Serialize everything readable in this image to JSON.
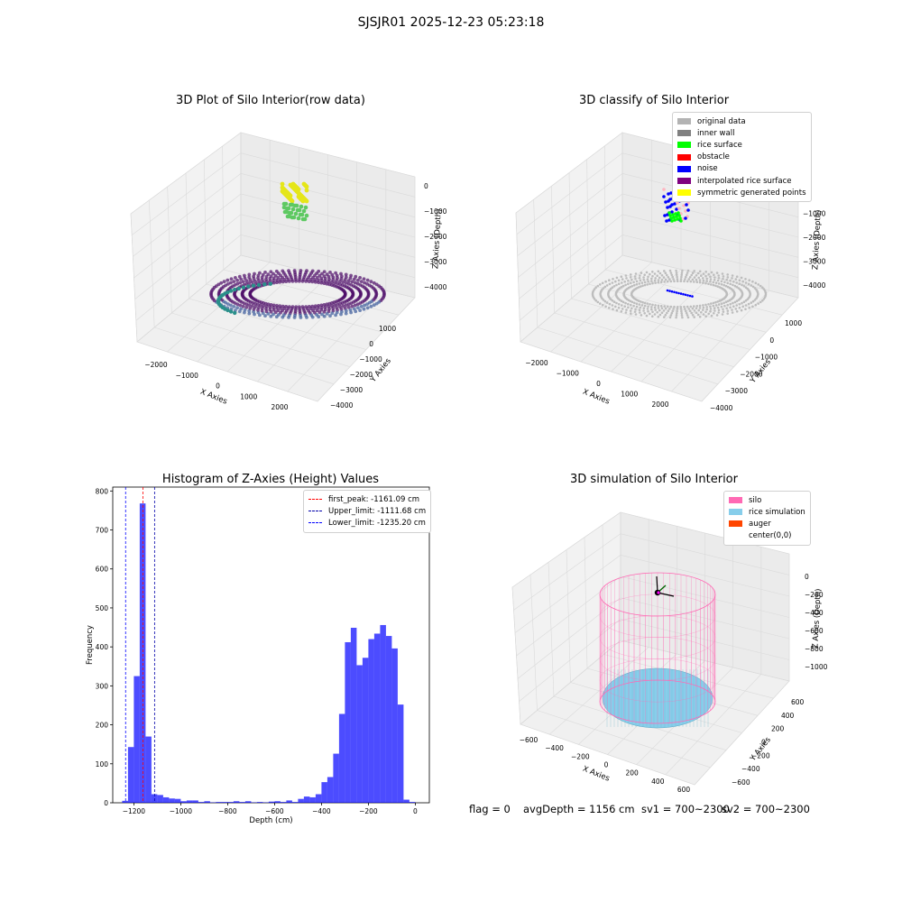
{
  "figure": {
    "suptitle": "SJSJR01 2025-12-23 05:23:18",
    "footer": {
      "flag": "flag = 0",
      "avg": "avgDepth = 1156 cm",
      "sv1": "sv1 = 700~2300",
      "sv2": "sv2 = 700~2300"
    }
  },
  "panels": {
    "raw": {
      "title": "3D Plot of Silo Interior(row data)",
      "xlabel": "X Axies",
      "ylabel": "Y Axies",
      "zlabel": "Z Axies (Depth)",
      "xticks": [
        "−2000",
        "−1000",
        "0",
        "1000",
        "2000"
      ],
      "yticks": [
        "1000",
        "0",
        "−1000",
        "−2000",
        "−3000",
        "−4000"
      ],
      "zticks": [
        "0",
        "−1000",
        "−2000",
        "−3000",
        "−4000"
      ]
    },
    "classify": {
      "title": "3D classify of Silo Interior",
      "xlabel": "X Axies",
      "ylabel": "Y Axies",
      "zlabel": "Z Axies (Depth)",
      "xticks": [
        "−2000",
        "−1000",
        "0",
        "1000",
        "2000"
      ],
      "yticks": [
        "1000",
        "0",
        "−1000",
        "−2000",
        "−3000",
        "−4000"
      ],
      "zticks": [
        "0",
        "−1000",
        "−2000",
        "−3000",
        "−4000"
      ],
      "legend": [
        {
          "label": "original data",
          "color": "#b3b3b3"
        },
        {
          "label": "inner wall",
          "color": "#808080"
        },
        {
          "label": "rice surface",
          "color": "#00ff00"
        },
        {
          "label": "obstacle",
          "color": "#ff0000"
        },
        {
          "label": "noise",
          "color": "#0000ff"
        },
        {
          "label": "interpolated rice surface",
          "color": "#800080"
        },
        {
          "label": "symmetric generated points",
          "color": "#ffff00"
        }
      ]
    },
    "simulation": {
      "title": "3D simulation of Silo Interior",
      "xlabel": "X Axies",
      "ylabel": "Y Axies",
      "zlabel": "Z Axies (Depth)",
      "xticks": [
        "−600",
        "−400",
        "−200",
        "0",
        "200",
        "400",
        "600"
      ],
      "yticks": [
        "600",
        "400",
        "200",
        "0",
        "−200",
        "−400",
        "−600"
      ],
      "zticks": [
        "0",
        "−200",
        "−400",
        "−600",
        "−800",
        "−1000"
      ],
      "legend": [
        {
          "label": "silo",
          "color": "#ff69b4"
        },
        {
          "label": "rice simulation",
          "color": "#87ceeb"
        },
        {
          "label": "auger",
          "color": "#ff4500"
        },
        {
          "label": "center(0,0)",
          "color": ""
        }
      ]
    }
  },
  "chart_data": {
    "type": "bar",
    "title": "Histogram of Z-Axies (Height) Values",
    "xlabel": "Depth (cm)",
    "ylabel": "Frequency",
    "xlim": [
      -1290,
      60
    ],
    "ylim": [
      0,
      810
    ],
    "xticks": [
      -1200,
      -1000,
      -800,
      -600,
      -400,
      -200,
      0
    ],
    "yticks": [
      0,
      100,
      200,
      300,
      400,
      500,
      600,
      700,
      800
    ],
    "bar_color": "#0000ff",
    "bin_width": 25,
    "bins": [
      {
        "x": -1250,
        "y": 5
      },
      {
        "x": -1225,
        "y": 143
      },
      {
        "x": -1200,
        "y": 325
      },
      {
        "x": -1175,
        "y": 768
      },
      {
        "x": -1150,
        "y": 170
      },
      {
        "x": -1125,
        "y": 22
      },
      {
        "x": -1100,
        "y": 20
      },
      {
        "x": -1075,
        "y": 14
      },
      {
        "x": -1050,
        "y": 11
      },
      {
        "x": -1025,
        "y": 10
      },
      {
        "x": -1000,
        "y": 4
      },
      {
        "x": -975,
        "y": 6
      },
      {
        "x": -950,
        "y": 6
      },
      {
        "x": -925,
        "y": 2
      },
      {
        "x": -900,
        "y": 4
      },
      {
        "x": -875,
        "y": 1
      },
      {
        "x": -850,
        "y": 2
      },
      {
        "x": -825,
        "y": 2
      },
      {
        "x": -800,
        "y": 2
      },
      {
        "x": -775,
        "y": 4
      },
      {
        "x": -750,
        "y": 2
      },
      {
        "x": -725,
        "y": 4
      },
      {
        "x": -700,
        "y": 1
      },
      {
        "x": -675,
        "y": 2
      },
      {
        "x": -650,
        "y": 1
      },
      {
        "x": -625,
        "y": 3
      },
      {
        "x": -600,
        "y": 4
      },
      {
        "x": -575,
        "y": 2
      },
      {
        "x": -550,
        "y": 6
      },
      {
        "x": -525,
        "y": 2
      },
      {
        "x": -500,
        "y": 10
      },
      {
        "x": -475,
        "y": 16
      },
      {
        "x": -450,
        "y": 14
      },
      {
        "x": -425,
        "y": 22
      },
      {
        "x": -400,
        "y": 53
      },
      {
        "x": -375,
        "y": 66
      },
      {
        "x": -350,
        "y": 126
      },
      {
        "x": -325,
        "y": 228
      },
      {
        "x": -300,
        "y": 412
      },
      {
        "x": -275,
        "y": 449
      },
      {
        "x": -250,
        "y": 353
      },
      {
        "x": -225,
        "y": 372
      },
      {
        "x": -200,
        "y": 420
      },
      {
        "x": -175,
        "y": 434
      },
      {
        "x": -150,
        "y": 456
      },
      {
        "x": -125,
        "y": 428
      },
      {
        "x": -100,
        "y": 396
      },
      {
        "x": -75,
        "y": 252
      },
      {
        "x": -50,
        "y": 8
      },
      {
        "x": -25,
        "y": 2
      }
    ],
    "vlines": [
      {
        "label": "first_peak: -1161.09 cm",
        "x": -1161.09,
        "color": "#ff0000"
      },
      {
        "label": "Upper_limit: -1111.68 cm",
        "x": -1111.68,
        "color": "#0000aa"
      },
      {
        "label": "Lower_limit: -1235.20 cm",
        "x": -1235.2,
        "color": "#0000ff"
      }
    ]
  }
}
